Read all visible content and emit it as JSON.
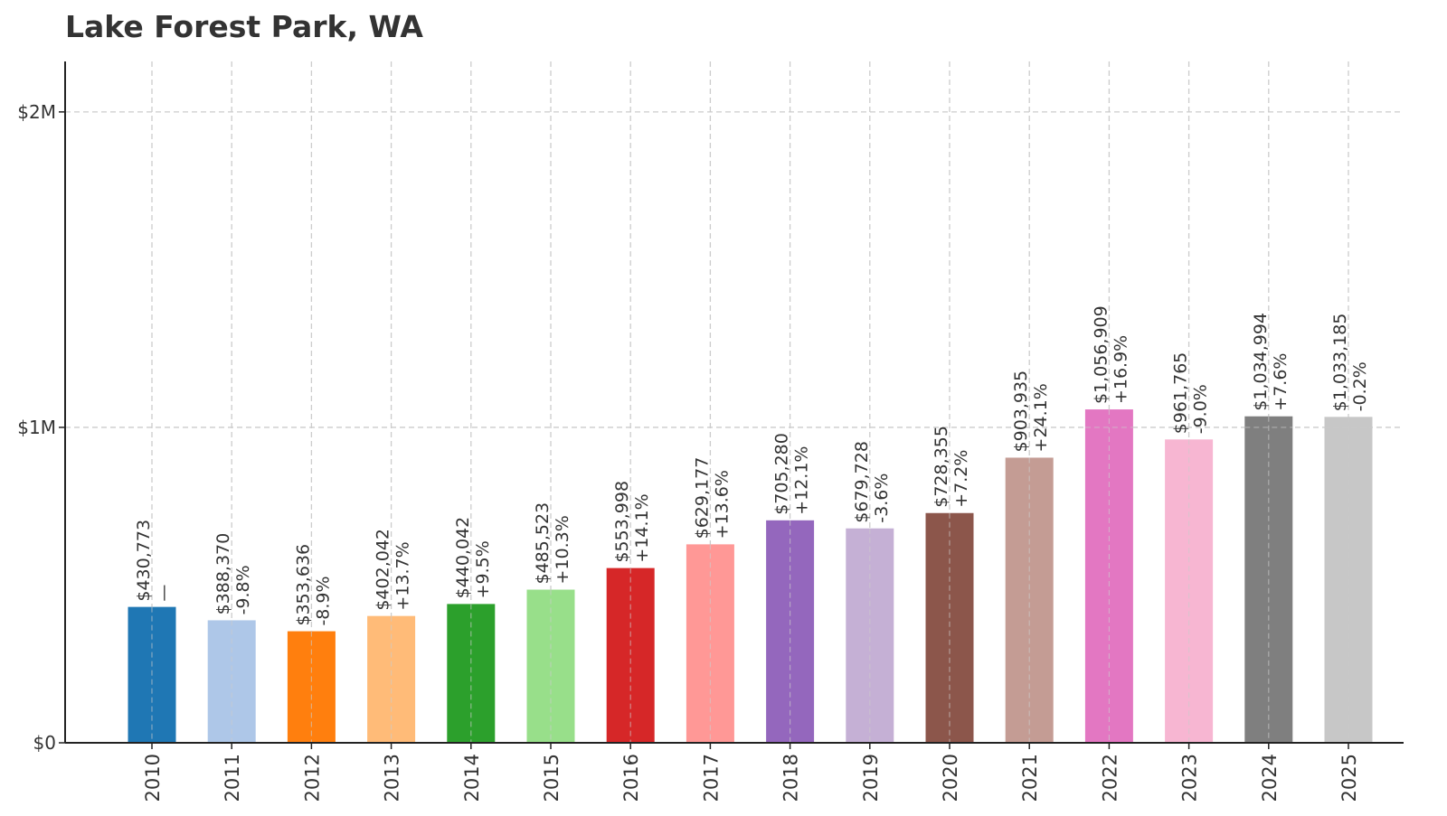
{
  "chart_data": {
    "type": "bar",
    "title": "Lake Forest Park, WA",
    "xlabel": "",
    "ylabel": "",
    "ylim": [
      0,
      2160000
    ],
    "yticks": [
      {
        "value": 0,
        "label": "$0"
      },
      {
        "value": 1000000,
        "label": "$1M"
      },
      {
        "value": 2000000,
        "label": "$2M"
      }
    ],
    "grid": true,
    "categories": [
      "2010",
      "2011",
      "2012",
      "2013",
      "2014",
      "2015",
      "2016",
      "2017",
      "2018",
      "2019",
      "2020",
      "2021",
      "2022",
      "2023",
      "2024",
      "2025"
    ],
    "values": [
      430773,
      388370,
      353636,
      402042,
      440042,
      485523,
      553998,
      629177,
      705280,
      679728,
      728355,
      903935,
      1056909,
      961765,
      1034994,
      1033185
    ],
    "value_labels": [
      "$430,773",
      "$388,370",
      "$353,636",
      "$402,042",
      "$440,042",
      "$485,523",
      "$553,998",
      "$629,177",
      "$705,280",
      "$679,728",
      "$728,355",
      "$903,935",
      "$1,056,909",
      "$961,765",
      "$1,034,994",
      "$1,033,185"
    ],
    "change_labels": [
      "—",
      "-9.8%",
      "-8.9%",
      "+13.7%",
      "+9.5%",
      "+10.3%",
      "+14.1%",
      "+13.6%",
      "+12.1%",
      "-3.6%",
      "+7.2%",
      "+24.1%",
      "+16.9%",
      "-9.0%",
      "+7.6%",
      "-0.2%"
    ],
    "colors": [
      "#1f77b4",
      "#aec7e8",
      "#ff7f0e",
      "#ffbb78",
      "#2ca02c",
      "#98df8a",
      "#d62728",
      "#ff9896",
      "#9467bd",
      "#c5b0d5",
      "#8c564b",
      "#c49c94",
      "#e377c2",
      "#f7b6d2",
      "#7f7f7f",
      "#c7c7c7"
    ]
  }
}
